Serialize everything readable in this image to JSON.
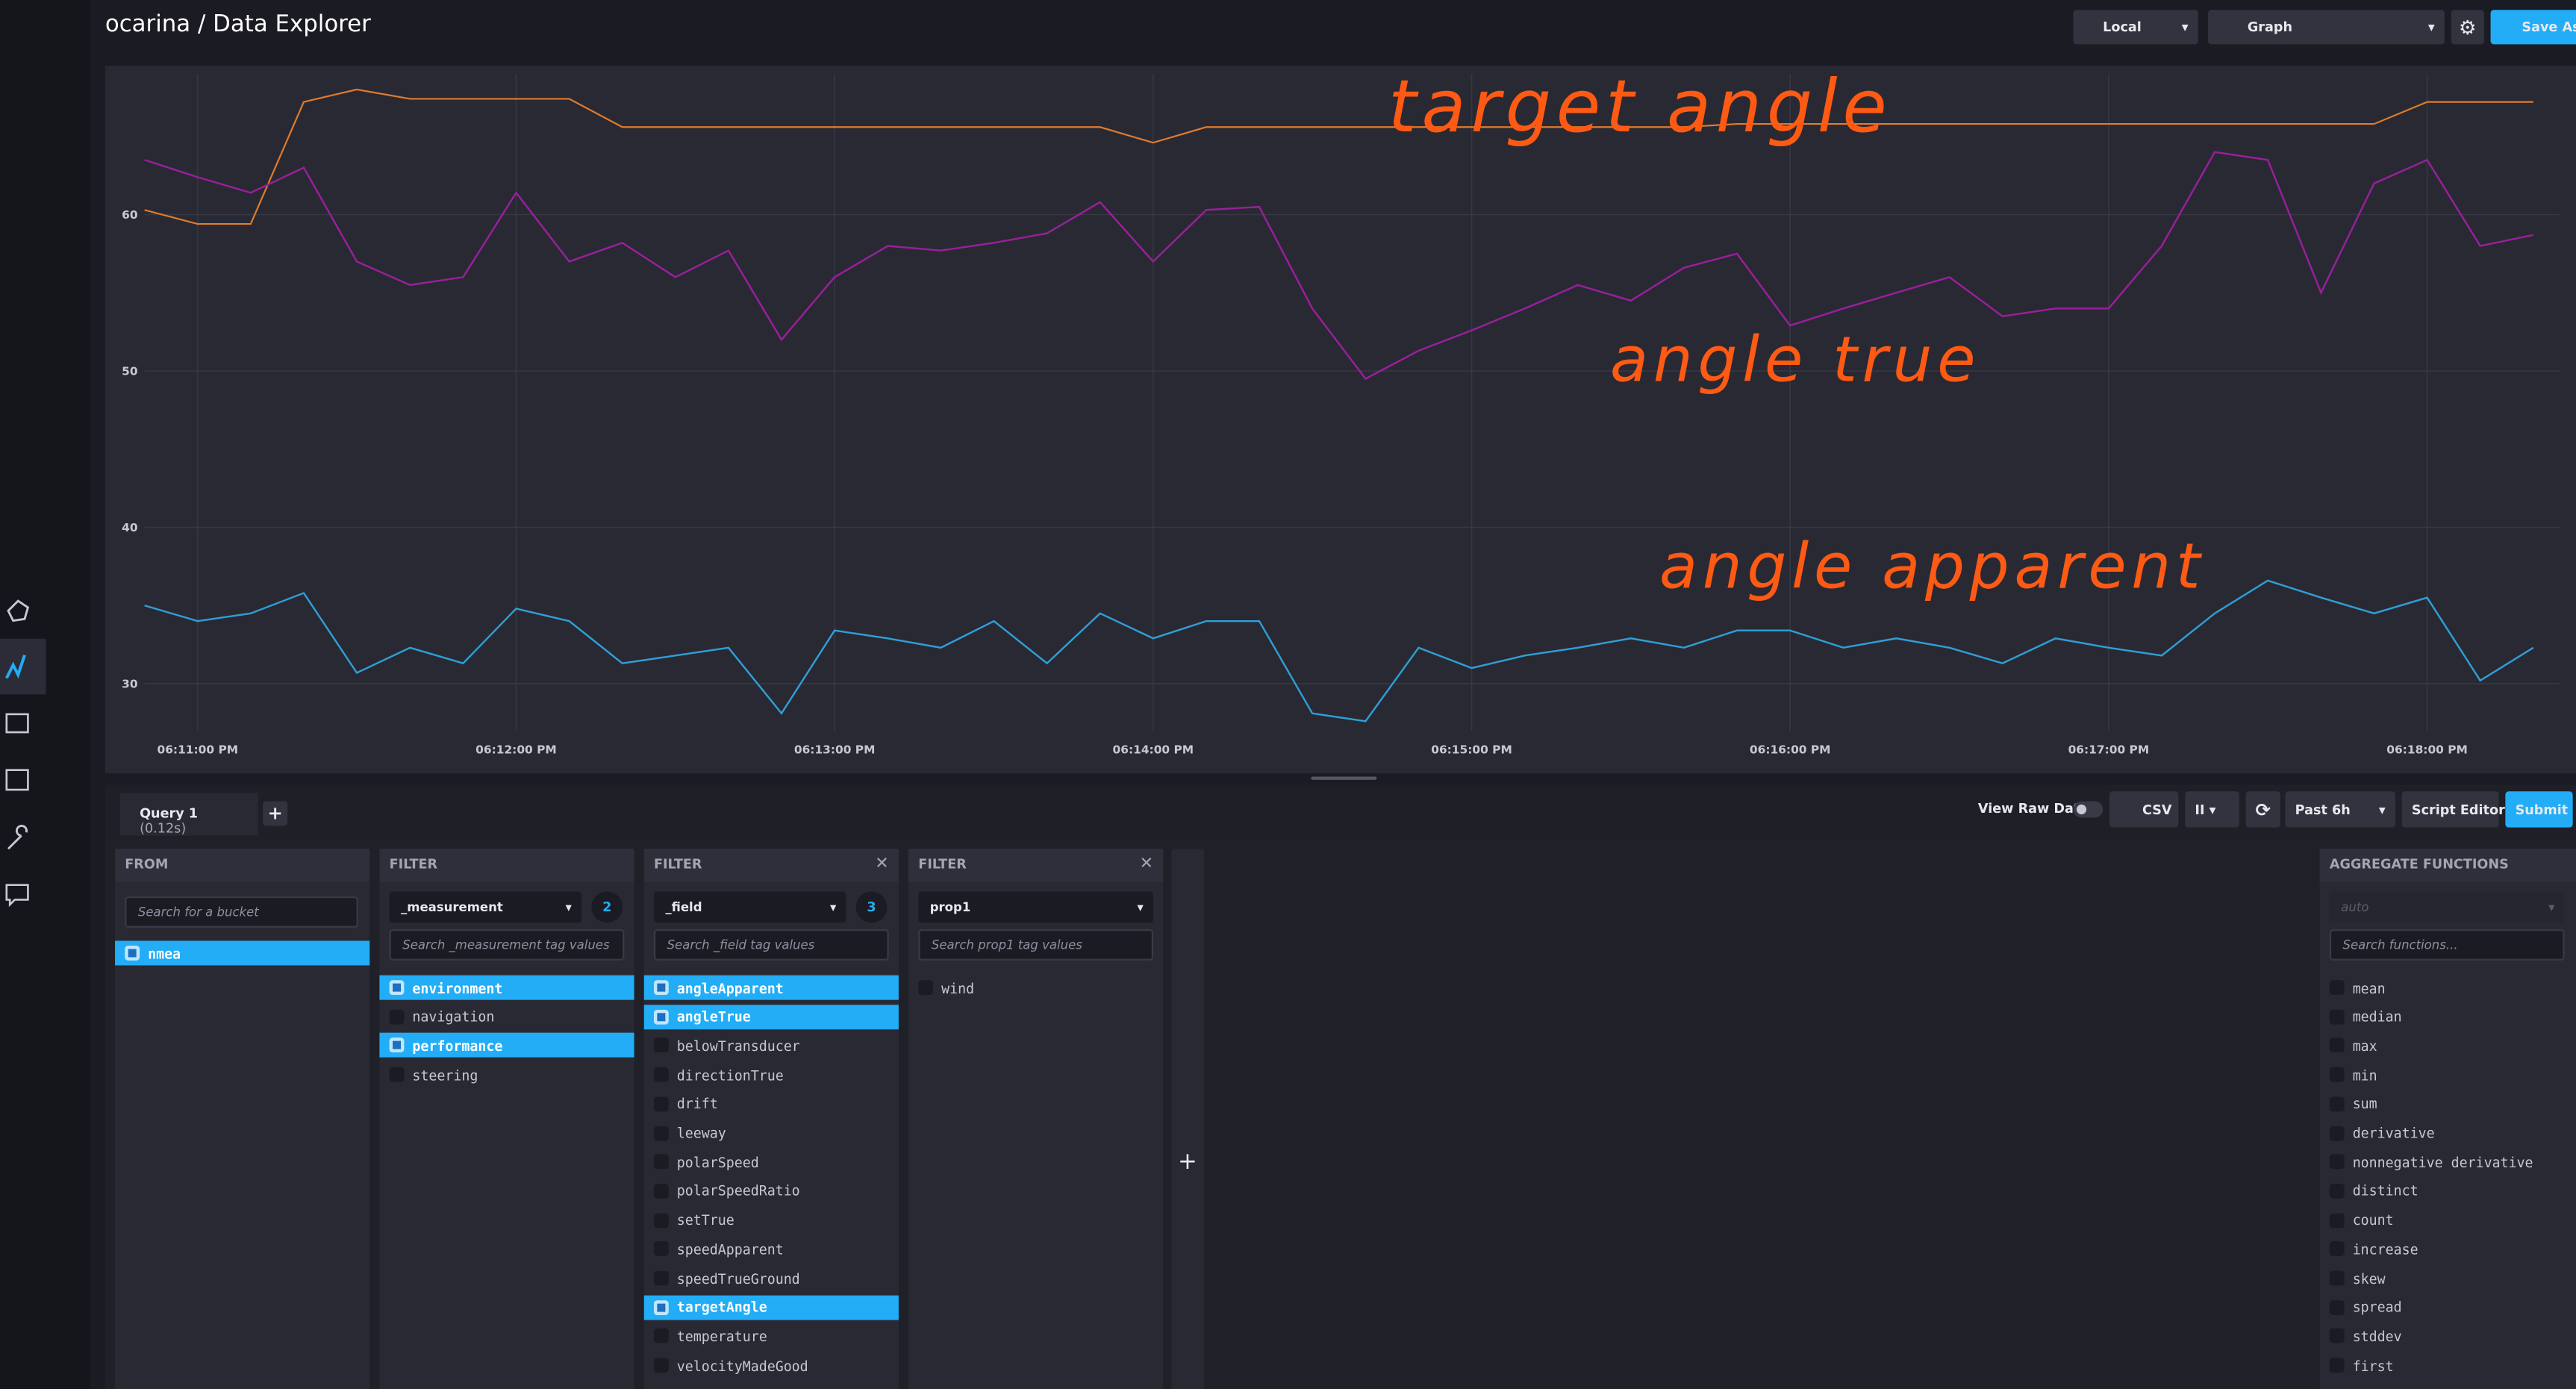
{
  "header": {
    "title": "ocarina / Data Explorer",
    "env": "Local",
    "view": "Graph",
    "save": "Save As"
  },
  "chart_data": {
    "type": "line",
    "categories": [
      null,
      "06:11:00 PM",
      null,
      null,
      null,
      null,
      null,
      "06:12:00 PM",
      null,
      null,
      null,
      null,
      null,
      "06:13:00 PM",
      null,
      null,
      null,
      null,
      null,
      "06:14:00 PM",
      null,
      null,
      null,
      null,
      null,
      "06:15:00 PM",
      null,
      null,
      null,
      null,
      null,
      "06:16:00 PM",
      null,
      null,
      null,
      null,
      null,
      "06:17:00 PM",
      null,
      null,
      null,
      null,
      null,
      "06:18:00 PM",
      null,
      null
    ],
    "series": [
      {
        "name": "target angle",
        "color": "#e07b2c",
        "values": [
          60.3,
          59.4,
          59.4,
          67.2,
          68,
          67.4,
          67.4,
          67.4,
          67.4,
          65.6,
          65.6,
          65.6,
          65.6,
          65.6,
          65.6,
          65.6,
          65.6,
          65.6,
          65.6,
          64.6,
          65.6,
          65.6,
          65.6,
          65.6,
          65.6,
          65.6,
          65.6,
          65.6,
          65.6,
          65.6,
          65.8,
          65.8,
          65.8,
          65.8,
          65.8,
          65.8,
          65.8,
          65.8,
          65.8,
          65.8,
          65.8,
          65.8,
          65.8,
          67.2,
          67.2,
          67.2
        ]
      },
      {
        "name": "angle true",
        "color": "#9a1f9c",
        "values": [
          63.5,
          62.4,
          61.4,
          63,
          57,
          55.5,
          56,
          61.4,
          57,
          58.2,
          56,
          57.7,
          52,
          56,
          58,
          57.7,
          58.2,
          58.8,
          60.8,
          57,
          60.3,
          60.5,
          54,
          49.5,
          51.3,
          52.6,
          54,
          55.5,
          54.5,
          56.6,
          57.5,
          52.9,
          54,
          55,
          56,
          53.5,
          54,
          54,
          58,
          64,
          63.5,
          55,
          62,
          63.5,
          58,
          58.7
        ]
      },
      {
        "name": "angle apparent",
        "color": "#2f9fd6",
        "values": [
          35,
          34,
          34.5,
          35.8,
          30.7,
          32.3,
          31.3,
          34.8,
          34,
          31.3,
          31.8,
          32.3,
          28.1,
          33.4,
          32.9,
          32.3,
          34,
          31.3,
          34.5,
          32.9,
          34,
          34,
          28.1,
          27.6,
          32.3,
          31,
          31.8,
          32.3,
          32.9,
          32.3,
          33.4,
          33.4,
          32.3,
          32.9,
          32.3,
          31.3,
          32.9,
          32.3,
          31.8,
          34.5,
          36.6,
          35.5,
          34.5,
          35.5,
          30.2,
          32.3
        ]
      }
    ],
    "ylim": [
      27,
      69
    ],
    "yticks": [
      30,
      40,
      50,
      60
    ],
    "grid": true,
    "annotations": [
      "target angle",
      "angle true",
      "angle apparent"
    ]
  },
  "query": {
    "tab": "Query 1",
    "time": "(0.12s)",
    "view_raw": "View Raw Data",
    "csv": "CSV",
    "range": "Past 6h",
    "script_editor": "Script Editor",
    "submit": "Submit"
  },
  "builder": {
    "from": {
      "title": "FROM",
      "search": "Search for a bucket",
      "items": [
        {
          "label": "nmea",
          "selected": true
        }
      ]
    },
    "filters": [
      {
        "title": "FILTER",
        "key": "_measurement",
        "count": 2,
        "search": "Search _measurement tag values",
        "items": [
          {
            "label": "environment",
            "selected": true
          },
          {
            "label": "navigation",
            "selected": false
          },
          {
            "label": "performance",
            "selected": true
          },
          {
            "label": "steering",
            "selected": false
          }
        ]
      },
      {
        "title": "FILTER",
        "key": "_field",
        "count": 3,
        "search": "Search _field tag values",
        "items": [
          {
            "label": "angleApparent",
            "selected": true
          },
          {
            "label": "angleTrue",
            "selected": true
          },
          {
            "label": "belowTransducer",
            "selected": false
          },
          {
            "label": "directionTrue",
            "selected": false
          },
          {
            "label": "drift",
            "selected": false
          },
          {
            "label": "leeway",
            "selected": false
          },
          {
            "label": "polarSpeed",
            "selected": false
          },
          {
            "label": "polarSpeedRatio",
            "selected": false
          },
          {
            "label": "setTrue",
            "selected": false
          },
          {
            "label": "speedApparent",
            "selected": false
          },
          {
            "label": "speedTrueGround",
            "selected": false
          },
          {
            "label": "targetAngle",
            "selected": true
          },
          {
            "label": "temperature",
            "selected": false
          },
          {
            "label": "velocityMadeGood",
            "selected": false
          }
        ]
      },
      {
        "title": "FILTER",
        "key": "prop1",
        "search": "Search prop1 tag values",
        "items": [
          {
            "label": "wind",
            "selected": false
          }
        ]
      }
    ],
    "aggregate": {
      "title": "AGGREGATE FUNCTIONS",
      "window": "auto",
      "search": "Search functions...",
      "items": [
        {
          "label": "mean",
          "selected": false
        },
        {
          "label": "median",
          "selected": false
        },
        {
          "label": "max",
          "selected": false
        },
        {
          "label": "min",
          "selected": false
        },
        {
          "label": "sum",
          "selected": false
        },
        {
          "label": "derivative",
          "selected": false
        },
        {
          "label": "nonnegative derivative",
          "selected": false
        },
        {
          "label": "distinct",
          "selected": false
        },
        {
          "label": "count",
          "selected": false
        },
        {
          "label": "increase",
          "selected": false
        },
        {
          "label": "skew",
          "selected": false
        },
        {
          "label": "spread",
          "selected": false
        },
        {
          "label": "stddev",
          "selected": false
        },
        {
          "label": "first",
          "selected": false
        }
      ]
    }
  }
}
